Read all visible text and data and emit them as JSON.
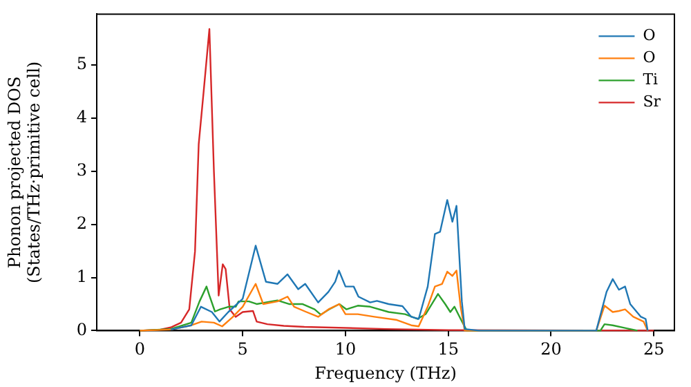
{
  "chart_data": {
    "type": "line",
    "xlabel": "Frequency (THz)",
    "ylabel": "Phonon projected DOS\n(States/THz·primitive cell)",
    "xlim": [
      -2.1,
      26
    ],
    "ylim": [
      0,
      5.96
    ],
    "xticks": [
      0,
      5,
      10,
      15,
      20,
      25
    ],
    "yticks": [
      0,
      1,
      2,
      3,
      4,
      5
    ],
    "grid": false,
    "legend": "top right",
    "marker": "none",
    "line_style": "solid",
    "series": [
      {
        "name": "O",
        "color": "#1f77b4",
        "x": [
          1.5,
          2.5,
          2.97,
          3.5,
          3.87,
          4.3,
          5.0,
          5.63,
          6.13,
          6.69,
          7.18,
          7.7,
          8.04,
          8.67,
          9.17,
          9.5,
          9.68,
          10.0,
          10.4,
          10.63,
          11.2,
          11.53,
          12.1,
          12.77,
          13.2,
          13.56,
          14.0,
          14.35,
          14.6,
          14.95,
          15.2,
          15.4,
          15.66,
          15.8,
          16.5,
          22.2,
          22.7,
          23.0,
          23.3,
          23.6,
          23.85,
          24.37,
          24.6,
          24.7
        ],
        "values": [
          0.02,
          0.1,
          0.45,
          0.35,
          0.17,
          0.35,
          0.6,
          1.6,
          0.92,
          0.88,
          1.06,
          0.78,
          0.88,
          0.53,
          0.73,
          0.92,
          1.13,
          0.83,
          0.83,
          0.64,
          0.53,
          0.56,
          0.5,
          0.46,
          0.26,
          0.22,
          0.83,
          1.82,
          1.86,
          2.46,
          2.05,
          2.35,
          0.55,
          0.03,
          0,
          0,
          0.73,
          0.97,
          0.77,
          0.83,
          0.5,
          0.26,
          0.22,
          0
        ]
      },
      {
        "name": "O",
        "color": "#ff7f0e",
        "x": [
          0,
          1.5,
          2.5,
          3.0,
          3.6,
          4.0,
          4.5,
          5.0,
          5.63,
          6.0,
          6.69,
          7.18,
          7.5,
          8.04,
          8.67,
          9.17,
          9.7,
          10.0,
          10.6,
          11.4,
          12.5,
          13.2,
          13.56,
          14.0,
          14.35,
          14.7,
          14.95,
          15.2,
          15.4,
          15.6,
          15.8,
          16.5,
          22.2,
          22.6,
          23.0,
          23.3,
          23.6,
          24.0,
          24.5,
          24.7
        ],
        "values": [
          0,
          0.02,
          0.1,
          0.17,
          0.15,
          0.08,
          0.25,
          0.45,
          0.88,
          0.5,
          0.55,
          0.64,
          0.45,
          0.36,
          0.26,
          0.4,
          0.5,
          0.31,
          0.31,
          0.26,
          0.2,
          0.1,
          0.08,
          0.45,
          0.83,
          0.88,
          1.11,
          1.03,
          1.13,
          0.45,
          0,
          0,
          0,
          0.47,
          0.35,
          0.37,
          0.4,
          0.26,
          0.17,
          0
        ]
      },
      {
        "name": "Ti",
        "color": "#2ca02c",
        "x": [
          0,
          1.5,
          2.5,
          2.9,
          3.24,
          3.38,
          3.65,
          3.9,
          4.32,
          4.66,
          4.8,
          5.3,
          5.68,
          6.69,
          7.25,
          7.9,
          8.5,
          8.8,
          9.2,
          9.7,
          10.05,
          10.6,
          11.2,
          12.1,
          12.9,
          13.5,
          13.9,
          14.5,
          14.85,
          15.1,
          15.3,
          15.6,
          15.9,
          16.5,
          22.4,
          22.6,
          23.0,
          23.6,
          24.2
        ],
        "values": [
          0,
          0.03,
          0.15,
          0.55,
          0.83,
          0.66,
          0.36,
          0.4,
          0.45,
          0.45,
          0.55,
          0.55,
          0.5,
          0.57,
          0.5,
          0.5,
          0.4,
          0.3,
          0.4,
          0.5,
          0.4,
          0.47,
          0.45,
          0.35,
          0.31,
          0.22,
          0.31,
          0.69,
          0.5,
          0.35,
          0.45,
          0.22,
          0,
          0,
          0,
          0.12,
          0.1,
          0.05,
          0
        ]
      },
      {
        "name": "Sr",
        "color": "#d62728",
        "x": [
          0,
          1.0,
          1.5,
          2.0,
          2.4,
          2.68,
          2.86,
          3.1,
          3.38,
          3.6,
          3.83,
          4.03,
          4.17,
          4.37,
          4.66,
          5.0,
          5.5,
          5.68,
          6.2,
          7.0,
          8.0,
          10.0,
          12.0,
          15.0,
          25.0
        ],
        "values": [
          0,
          0.02,
          0.06,
          0.15,
          0.4,
          1.49,
          3.51,
          4.5,
          5.68,
          3.0,
          0.66,
          1.25,
          1.16,
          0.4,
          0.26,
          0.35,
          0.37,
          0.17,
          0.12,
          0.09,
          0.07,
          0.05,
          0.03,
          0.01,
          0
        ]
      }
    ]
  }
}
